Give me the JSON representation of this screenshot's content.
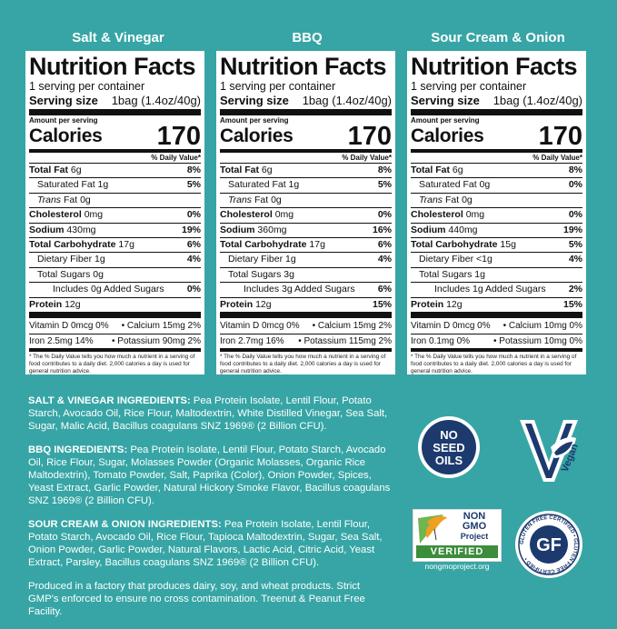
{
  "columns": [
    {
      "title": "Salt & Vinegar",
      "servings": "1 serving per container",
      "serving_size_label": "Serving size",
      "serving_size": "1bag (1.4oz/40g)",
      "amount_per_serving": "Amount per serving",
      "calories_label": "Calories",
      "calories": "170",
      "dv_header": "% Daily Value*",
      "total_fat": "6g",
      "total_fat_dv": "8%",
      "sat_fat": "1g",
      "sat_fat_dv": "5%",
      "trans_fat": "0g",
      "cholesterol": "0mg",
      "cholesterol_dv": "0%",
      "sodium": "430mg",
      "sodium_dv": "19%",
      "carb": "17g",
      "carb_dv": "6%",
      "fiber": "1g",
      "fiber_dv": "4%",
      "sugars": "0g",
      "added_sugars": "Includes 0g Added Sugars",
      "added_sugars_dv": "0%",
      "protein": "12g",
      "protein_dv": "",
      "vitd": "Vitamin D 0mcg 0%",
      "calcium": "Calcium 15mg 2%",
      "iron": "Iron 2.5mg 14%",
      "potassium": "Potassium 90mg 2%",
      "footnote": "* The % Daily Value tells you how much a nutrient in a serving of food contributes to a daily diet. 2,000 calories a day is used for general nutrition advice."
    },
    {
      "title": "BBQ",
      "servings": "1 serving per container",
      "serving_size_label": "Serving size",
      "serving_size": "1bag (1.4oz/40g)",
      "amount_per_serving": "Amount per serving",
      "calories_label": "Calories",
      "calories": "170",
      "dv_header": "% Daily Value*",
      "total_fat": "6g",
      "total_fat_dv": "8%",
      "sat_fat": "1g",
      "sat_fat_dv": "5%",
      "trans_fat": "0g",
      "cholesterol": "0mg",
      "cholesterol_dv": "0%",
      "sodium": "360mg",
      "sodium_dv": "16%",
      "carb": "17g",
      "carb_dv": "6%",
      "fiber": "1g",
      "fiber_dv": "4%",
      "sugars": "3g",
      "added_sugars": "Includes 3g Added Sugars",
      "added_sugars_dv": "6%",
      "protein": "12g",
      "protein_dv": "15%",
      "vitd": "Vitamin D 0mcg 0%",
      "calcium": "Calcium 15mg 2%",
      "iron": "Iron 2.7mg 16%",
      "potassium": "Potassium 115mg 2%",
      "footnote": "* The % Daily Value tells you how much a nutrient in a serving of food contributes to a daily diet. 2,000 calories a day is used for general nutrition advice."
    },
    {
      "title": "Sour Cream & Onion",
      "servings": "1 serving per container",
      "serving_size_label": "Serving size",
      "serving_size": "1bag (1.4oz/40g)",
      "amount_per_serving": "Amount per serving",
      "calories_label": "Calories",
      "calories": "170",
      "dv_header": "% Daily Value*",
      "total_fat": "6g",
      "total_fat_dv": "8%",
      "sat_fat": "0g",
      "sat_fat_dv": "0%",
      "trans_fat": "0g",
      "cholesterol": "0mg",
      "cholesterol_dv": "0%",
      "sodium": "440mg",
      "sodium_dv": "19%",
      "carb": "15g",
      "carb_dv": "5%",
      "fiber": "<1g",
      "fiber_dv": "4%",
      "sugars": "1g",
      "added_sugars": "Includes 1g Added Sugars",
      "added_sugars_dv": "2%",
      "protein": "12g",
      "protein_dv": "15%",
      "vitd": "Vitamin D 0mcg 0%",
      "calcium": "Calcium 10mg 0%",
      "iron": "Iron 0.1mg 0%",
      "potassium": "Potassium 10mg 0%",
      "footnote": "* The % Daily Value tells you how much a nutrient in a serving of food contributes to a daily diet. 2,000 calories a day is used for general nutrition advice."
    }
  ],
  "labels": {
    "nf_title": "Nutrition Facts",
    "total_fat": "Total Fat",
    "sat_fat": "Saturated Fat",
    "trans": "Trans",
    "fat": "Fat",
    "cholesterol": "Cholesterol",
    "sodium": "Sodium",
    "carb": "Total Carbohydrate",
    "fiber": "Dietary Fiber",
    "sugars": "Total Sugars",
    "protein": "Protein"
  },
  "ingredients": {
    "sv_label": "SALT & VINEGAR INGREDIENTS:",
    "sv_text": " Pea Protein Isolate, Lentil Flour, Potato Starch, Avocado Oil, Rice Flour, Maltodextrin, White Distilled Vinegar, Sea Salt, Sugar, Malic Acid, Bacillus coagulans SNZ 1969® (2 Billion CFU).",
    "bbq_label": "BBQ INGREDIENTS:",
    "bbq_text": " Pea Protein Isolate, Lentil Flour, Potato Starch, Avocado Oil, Rice Flour, Sugar, Molasses Powder (Organic Molasses, Organic Rice Maltodextrin), Tomato Powder, Salt, Paprika (Color), Onion Powder, Spices, Yeast Extract, Garlic Powder, Natural Hickory Smoke Flavor, Bacillus coagulans SNZ 1969® (2 Billion CFU).",
    "sco_label": "SOUR CREAM & ONION INGREDIENTS:",
    "sco_text": " Pea Protein Isolate, Lentil Flour, Potato Starch, Avocado Oil, Rice Flour, Tapioca Maltodextrin, Sugar, Sea Salt, Onion Powder, Garlic Powder, Natural Flavors, Lactic Acid, Citric Acid, Yeast Extract, Parsley, Bacillus coagulans SNZ 1969® (2 Billion CFU).",
    "factory": "Produced in a factory that produces dairy, soy, and wheat products. Strict GMP's enforced to ensure no cross contamination. Treenut & Peanut Free Facility."
  },
  "badges": {
    "no_seed_oils": [
      "NO",
      "SEED",
      "OILS"
    ],
    "vegan": "Vegan",
    "nongmo_line1": "NON",
    "nongmo_line2": "GMO",
    "nongmo_line3": "Project",
    "nongmo_verified": "VERIFIED",
    "nongmo_url": "nongmoproject.org",
    "gf": "GF",
    "gf_ring": "GLUTEN FREE CERTIFIED • GLUTEN FREE CERTIFIED •"
  },
  "colors": {
    "background": "#37a5a5",
    "badge_navy": "#1d3a6e",
    "nongmo_orange": "#f0a020",
    "nongmo_green": "#3c8d3c"
  }
}
